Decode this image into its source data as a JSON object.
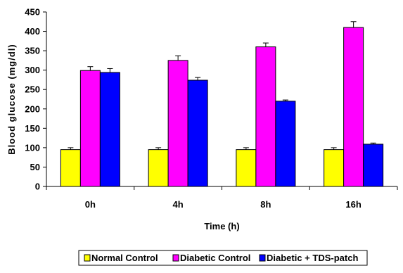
{
  "chart_data": {
    "type": "bar",
    "title": "",
    "xlabel": "Time (h)",
    "ylabel": "Blood glucose (mg/dl)",
    "categories": [
      "0h",
      "4h",
      "8h",
      "16h"
    ],
    "ylim": [
      0,
      450
    ],
    "yticks": [
      0,
      50,
      100,
      150,
      200,
      250,
      300,
      350,
      400,
      450
    ],
    "grid": false,
    "legend_position": "bottom",
    "series": [
      {
        "name": "Normal Control",
        "color": "#ffff00",
        "values": [
          95,
          95,
          95,
          95
        ],
        "errors": [
          5,
          5,
          5,
          5
        ]
      },
      {
        "name": "Diabetic Control",
        "color": "#ff00ff",
        "values": [
          299,
          325,
          360,
          410
        ],
        "errors": [
          10,
          12,
          10,
          15
        ]
      },
      {
        "name": "Diabetic + TDS-patch",
        "color": "#0000ff",
        "values": [
          294,
          274,
          220,
          109
        ],
        "errors": [
          10,
          7,
          3,
          3
        ]
      }
    ]
  }
}
